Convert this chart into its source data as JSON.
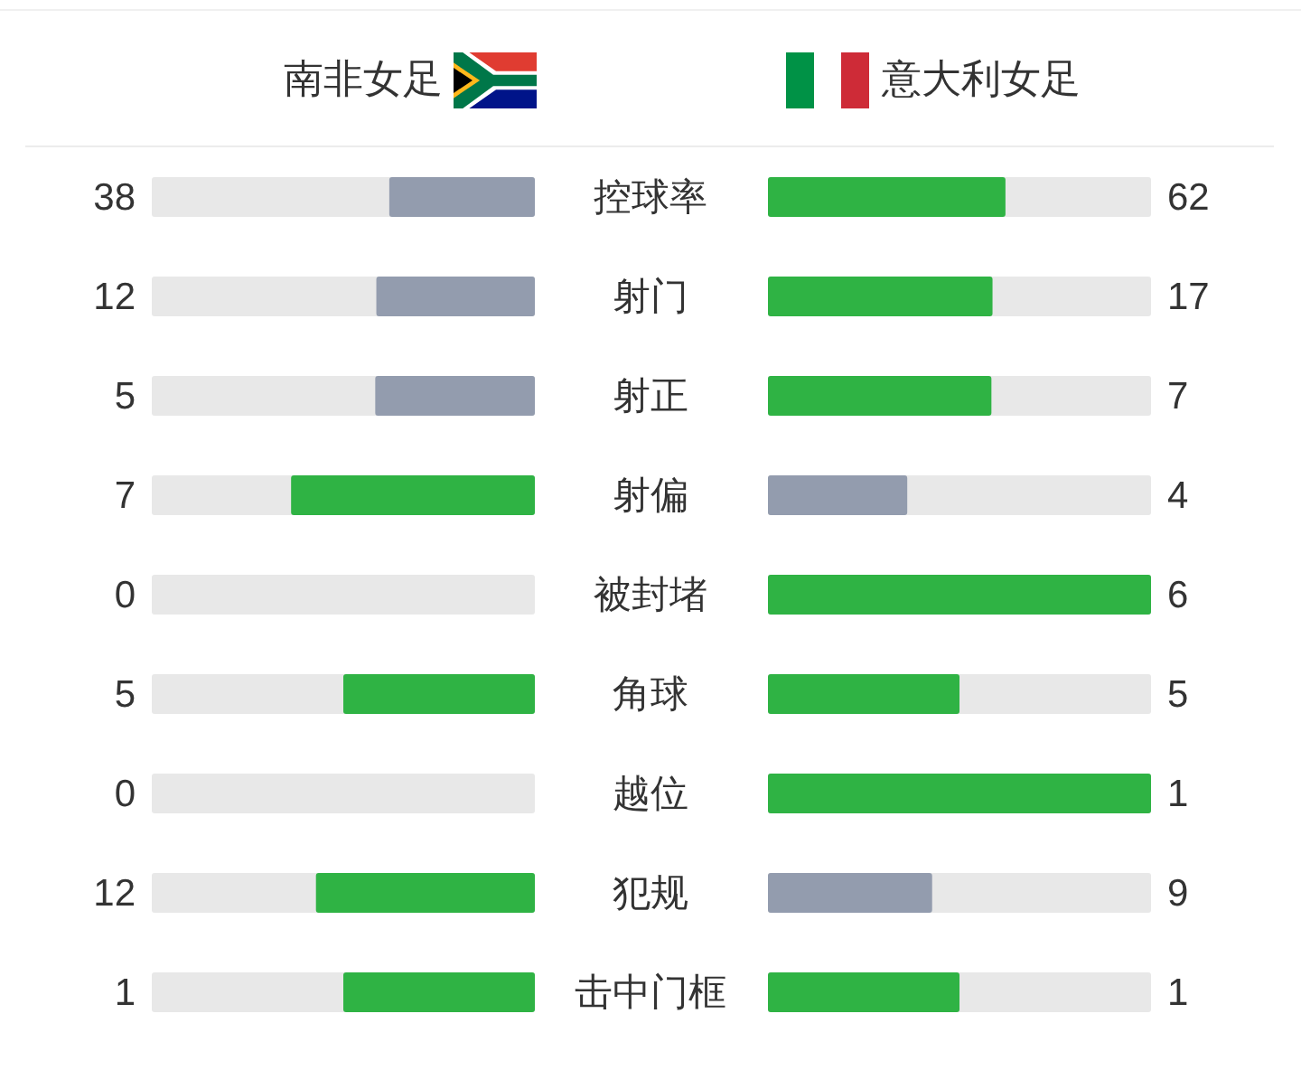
{
  "chart_data": {
    "type": "other",
    "data_labels": true,
    "categories": [
      "控球率",
      "射门",
      "射正",
      "射偏",
      "被封堵",
      "角球",
      "越位",
      "犯规",
      "击中门框"
    ],
    "series": [
      {
        "name": "南非女足",
        "colors": [
          "#939cae",
          "#939cae",
          "#939cae",
          "#2fb344",
          "#939cae",
          "#2fb344",
          "#939cae",
          "#2fb344",
          "#2fb344"
        ],
        "values": [
          38,
          12,
          5,
          7,
          0,
          5,
          0,
          12,
          1
        ]
      },
      {
        "name": "意大利女足",
        "colors": [
          "#2fb344",
          "#2fb344",
          "#2fb344",
          "#939cae",
          "#2fb344",
          "#2fb344",
          "#2fb344",
          "#939cae",
          "#2fb344"
        ],
        "values": [
          62,
          17,
          7,
          4,
          6,
          5,
          1,
          9,
          1
        ]
      }
    ]
  }
}
